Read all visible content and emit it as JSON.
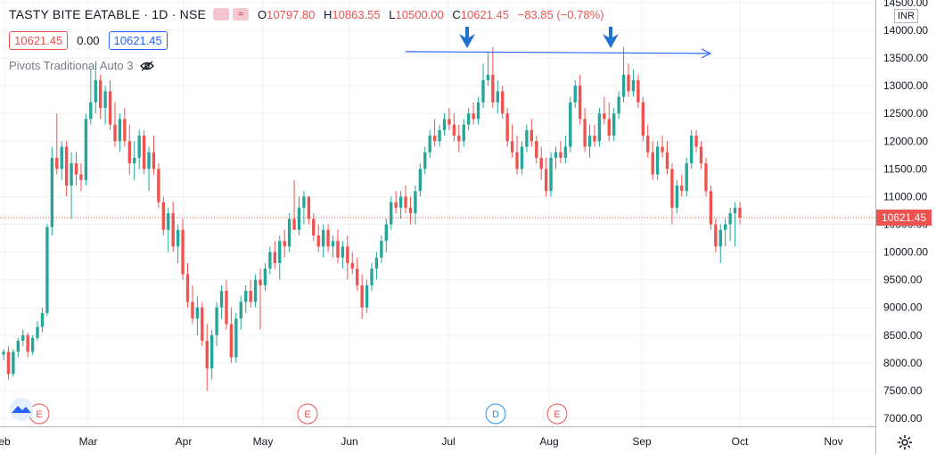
{
  "header": {
    "symbol": "TASTY BITE EATABLE · 1D · NSE",
    "ohlc": {
      "o_key": "O",
      "o_val": "10797.80",
      "h_key": "H",
      "h_val": "10863.55",
      "l_key": "L",
      "l_val": "10500.00",
      "c_key": "C",
      "c_val": "10621.45",
      "change": "−83.85 (−0.78%)"
    },
    "compare_glyph": "≈"
  },
  "pills": {
    "bid": "10621.45",
    "spread": "0.00",
    "ask": "10621.45"
  },
  "indicator": {
    "label": "Pivots Traditional Auto 3",
    "icon": "eye-crossed-icon"
  },
  "currency": "INR",
  "last_price_label": "10621.45",
  "colors": {
    "up": "#26a69a",
    "down": "#ef5350",
    "drawing": "#2962ff",
    "arrow": "#1e73d2",
    "grid": "#eef0f3"
  },
  "chart_data": {
    "type": "candlestick",
    "title": "TASTY BITE EATABLE · 1D · NSE",
    "y_ticks": [
      14500,
      14000,
      13500,
      13000,
      12500,
      12000,
      11500,
      11000,
      10500,
      10000,
      9500,
      9000,
      8500,
      8000,
      7500,
      7000
    ],
    "y_tick_labels": [
      "14500.00",
      "14000.00",
      "13500.00",
      "13000.00",
      "12500.00",
      "12000.00",
      "11500.00",
      "11000.00",
      "10500.00",
      "10000.00",
      "9500.00",
      "9000.00",
      "8500.00",
      "8000.00",
      "7500.00",
      "7000.00"
    ],
    "ylim": [
      6800,
      14600
    ],
    "x_labels": [
      "eb",
      "Mar",
      "Apr",
      "May",
      "Jun",
      "Jul",
      "Aug",
      "Sep",
      "Oct",
      "Nov"
    ],
    "last_price": 10621.45,
    "trendline": {
      "from": [
        "Jun",
        13600
      ],
      "to": [
        "Sep",
        13600
      ]
    },
    "markers": [
      {
        "letter": "E",
        "month": "Feb"
      },
      {
        "letter": "E",
        "month": "May"
      },
      {
        "letter": "D",
        "month": "Jul"
      },
      {
        "letter": "E",
        "month": "Aug"
      }
    ],
    "candles": [
      [
        8150,
        8250,
        8050,
        8200
      ],
      [
        8200,
        8300,
        7700,
        7800
      ],
      [
        7800,
        8250,
        7750,
        8200
      ],
      [
        8200,
        8450,
        8100,
        8400
      ],
      [
        8400,
        8600,
        8300,
        8500
      ],
      [
        8500,
        8550,
        8100,
        8200
      ],
      [
        8200,
        8500,
        8150,
        8450
      ],
      [
        8450,
        8750,
        8400,
        8650
      ],
      [
        8650,
        9000,
        8550,
        8900
      ],
      [
        8900,
        10500,
        8850,
        10450
      ],
      [
        10450,
        11900,
        10300,
        11700
      ],
      [
        11700,
        12500,
        11400,
        11500
      ],
      [
        11500,
        12000,
        11300,
        11900
      ],
      [
        11900,
        12000,
        11000,
        11200
      ],
      [
        11200,
        11800,
        10600,
        11600
      ],
      [
        11600,
        11800,
        11200,
        11400
      ],
      [
        11400,
        11600,
        11100,
        11300
      ],
      [
        11300,
        12500,
        11200,
        12400
      ],
      [
        12400,
        13300,
        12300,
        12700
      ],
      [
        12700,
        13400,
        12500,
        13100
      ],
      [
        13100,
        13200,
        12400,
        12600
      ],
      [
        12600,
        13000,
        12300,
        12900
      ],
      [
        12900,
        13100,
        12200,
        12300
      ],
      [
        12300,
        12700,
        11900,
        12000
      ],
      [
        12000,
        12500,
        11800,
        12400
      ],
      [
        12400,
        12600,
        11900,
        12000
      ],
      [
        12000,
        12300,
        11400,
        11600
      ],
      [
        11600,
        12000,
        11300,
        11700
      ],
      [
        11700,
        12200,
        11500,
        12100
      ],
      [
        12100,
        12200,
        11400,
        11500
      ],
      [
        11500,
        11900,
        11100,
        11800
      ],
      [
        11800,
        12100,
        11400,
        11500
      ],
      [
        11500,
        11600,
        10800,
        10900
      ],
      [
        10900,
        11000,
        10300,
        10400
      ],
      [
        10400,
        10800,
        10000,
        10700
      ],
      [
        10700,
        10900,
        10000,
        10100
      ],
      [
        10100,
        10500,
        9800,
        10400
      ],
      [
        10400,
        10600,
        9500,
        9600
      ],
      [
        9600,
        9800,
        9000,
        9100
      ],
      [
        9100,
        9400,
        8700,
        8800
      ],
      [
        8800,
        9200,
        8500,
        9000
      ],
      [
        9000,
        9100,
        8300,
        8400
      ],
      [
        8400,
        8700,
        7500,
        7900
      ],
      [
        7900,
        8600,
        7700,
        8500
      ],
      [
        8500,
        9100,
        8300,
        9000
      ],
      [
        9000,
        9400,
        8800,
        9300
      ],
      [
        9300,
        9500,
        8600,
        8700
      ],
      [
        8700,
        9000,
        8000,
        8100
      ],
      [
        8100,
        8900,
        8000,
        8800
      ],
      [
        8800,
        9200,
        8600,
        9100
      ],
      [
        9100,
        9400,
        8900,
        9300
      ],
      [
        9300,
        9500,
        9000,
        9100
      ],
      [
        9100,
        9600,
        9000,
        9500
      ],
      [
        9500,
        9700,
        8600,
        9400
      ],
      [
        9400,
        9800,
        9300,
        9700
      ],
      [
        9700,
        10100,
        9600,
        10000
      ],
      [
        10000,
        10200,
        9700,
        9800
      ],
      [
        9800,
        10300,
        9500,
        10200
      ],
      [
        10200,
        10400,
        9900,
        10100
      ],
      [
        10100,
        10700,
        10000,
        10600
      ],
      [
        10600,
        11300,
        10400,
        10400
      ],
      [
        10400,
        11000,
        10300,
        10800
      ],
      [
        10800,
        11100,
        10500,
        11000
      ],
      [
        11000,
        11000,
        10500,
        10600
      ],
      [
        10600,
        10700,
        10200,
        10300
      ],
      [
        10300,
        10500,
        10000,
        10100
      ],
      [
        10100,
        10500,
        9900,
        10400
      ],
      [
        10400,
        10500,
        10000,
        10100
      ],
      [
        10100,
        10300,
        9900,
        10200
      ],
      [
        10200,
        10400,
        9800,
        9900
      ],
      [
        9900,
        10200,
        9700,
        10100
      ],
      [
        10100,
        10300,
        9500,
        9800
      ],
      [
        9800,
        10000,
        9600,
        9700
      ],
      [
        9700,
        9900,
        9300,
        9400
      ],
      [
        9400,
        9600,
        8800,
        9000
      ],
      [
        9000,
        9500,
        8900,
        9400
      ],
      [
        9400,
        9800,
        9300,
        9700
      ],
      [
        9700,
        10000,
        9500,
        9900
      ],
      [
        9900,
        10300,
        9800,
        10200
      ],
      [
        10200,
        10600,
        10000,
        10500
      ],
      [
        10500,
        11000,
        10400,
        10900
      ],
      [
        10900,
        11100,
        10700,
        10800
      ],
      [
        10800,
        11100,
        10600,
        11000
      ],
      [
        11000,
        11200,
        10700,
        10800
      ],
      [
        10800,
        11000,
        10500,
        10700
      ],
      [
        10700,
        11200,
        10500,
        11100
      ],
      [
        11100,
        11600,
        11000,
        11500
      ],
      [
        11500,
        11900,
        11400,
        11800
      ],
      [
        11800,
        12200,
        11700,
        12100
      ],
      [
        12100,
        12400,
        11900,
        12000
      ],
      [
        12000,
        12300,
        11900,
        12200
      ],
      [
        12200,
        12500,
        12100,
        12400
      ],
      [
        12400,
        12600,
        12200,
        12300
      ],
      [
        12300,
        12500,
        12000,
        12100
      ],
      [
        12100,
        12300,
        11800,
        12000
      ],
      [
        12000,
        12400,
        11900,
        12300
      ],
      [
        12300,
        12600,
        12200,
        12500
      ],
      [
        12500,
        12700,
        12300,
        12400
      ],
      [
        12400,
        12800,
        12300,
        12700
      ],
      [
        12700,
        13400,
        12600,
        13100
      ],
      [
        13100,
        13600,
        13000,
        13200
      ],
      [
        13200,
        13700,
        12600,
        12700
      ],
      [
        12700,
        13100,
        12500,
        12900
      ],
      [
        12900,
        13000,
        12400,
        12500
      ],
      [
        12500,
        12600,
        11900,
        12000
      ],
      [
        12000,
        12300,
        11700,
        11800
      ],
      [
        11800,
        12100,
        11400,
        11500
      ],
      [
        11500,
        12000,
        11400,
        11900
      ],
      [
        11900,
        12300,
        11800,
        12200
      ],
      [
        12200,
        12400,
        11900,
        12000
      ],
      [
        12000,
        12100,
        11600,
        11700
      ],
      [
        11700,
        11900,
        11300,
        11500
      ],
      [
        11500,
        11700,
        11000,
        11100
      ],
      [
        11100,
        11800,
        11000,
        11700
      ],
      [
        11700,
        11900,
        11500,
        11800
      ],
      [
        11800,
        12000,
        11600,
        11700
      ],
      [
        11700,
        12100,
        11600,
        11900
      ],
      [
        11900,
        12800,
        11800,
        12700
      ],
      [
        12700,
        13100,
        12600,
        13000
      ],
      [
        13000,
        13200,
        12300,
        12400
      ],
      [
        12400,
        12600,
        11800,
        11900
      ],
      [
        11900,
        12300,
        11700,
        12100
      ],
      [
        12100,
        12300,
        11900,
        12000
      ],
      [
        12000,
        12600,
        11900,
        12500
      ],
      [
        12500,
        12800,
        12300,
        12400
      ],
      [
        12400,
        12700,
        12000,
        12100
      ],
      [
        12100,
        12600,
        12000,
        12500
      ],
      [
        12500,
        12900,
        12400,
        12800
      ],
      [
        12800,
        13700,
        12700,
        13200
      ],
      [
        13200,
        13400,
        12800,
        12900
      ],
      [
        12900,
        13300,
        12800,
        13100
      ],
      [
        13100,
        13200,
        12600,
        12700
      ],
      [
        12700,
        12800,
        12000,
        12100
      ],
      [
        12100,
        12300,
        11700,
        11800
      ],
      [
        11800,
        12000,
        11300,
        11400
      ],
      [
        11400,
        12000,
        11300,
        11900
      ],
      [
        11900,
        12100,
        11700,
        11800
      ],
      [
        11800,
        12000,
        11400,
        11500
      ],
      [
        11500,
        11600,
        10500,
        10800
      ],
      [
        10800,
        11300,
        10700,
        11200
      ],
      [
        11200,
        11400,
        11000,
        11100
      ],
      [
        11100,
        11700,
        11000,
        11600
      ],
      [
        11600,
        12200,
        11500,
        12100
      ],
      [
        12100,
        12200,
        11800,
        11900
      ],
      [
        11900,
        12000,
        11500,
        11600
      ],
      [
        11600,
        11700,
        11000,
        11100
      ],
      [
        11100,
        11200,
        10400,
        10500
      ],
      [
        10500,
        10600,
        10000,
        10100
      ],
      [
        10100,
        10500,
        9800,
        10400
      ],
      [
        10400,
        10600,
        10100,
        10500
      ],
      [
        10500,
        10800,
        10200,
        10700
      ],
      [
        10700,
        10900,
        10100,
        10800
      ],
      [
        10800,
        10900,
        10500,
        10621.45
      ]
    ]
  }
}
